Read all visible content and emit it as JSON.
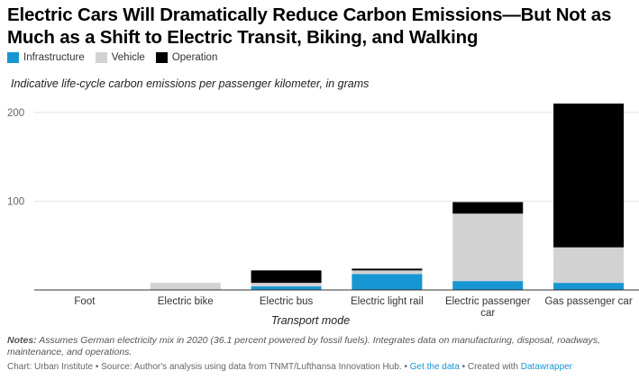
{
  "title": "Electric Cars Will Dramatically Reduce Carbon Emissions—But Not as Much as a Shift to Electric Transit, Biking, and Walking",
  "subtitle": "Indicative life-cycle carbon emissions per passenger kilometer, in grams",
  "notes_label": "Notes:",
  "notes_text": "Assumes German electricity mix in 2020 (36.1 percent powered by fossil fuels). Integrates data on manufacturing, disposal, roadways, maintenance, and operations.",
  "footer": {
    "prefix": "Chart: Urban Institute • Source: Author's analysis using data from TNMT/Lufthansa Innovation Hub. •",
    "get_data": "Get the data",
    "middle": "• Created with",
    "datawrapper": "Datawrapper"
  },
  "colors": {
    "infrastructure": "#1696d2",
    "vehicle": "#d2d2d2",
    "operation": "#000000",
    "grid": "#e3e3e3",
    "axis": "#555555",
    "link": "#1696d2"
  },
  "chart_data": {
    "type": "bar",
    "stacked": true,
    "xlabel": "Transport mode",
    "ylabel": "",
    "ylim": [
      0,
      210
    ],
    "yticks": [
      100,
      200
    ],
    "legend_position": "top-left",
    "grid": true,
    "categories": [
      "Foot",
      "Electric bike",
      "Electric bus",
      "Electric light rail",
      "Electric passenger car",
      "Gas passenger car"
    ],
    "series": [
      {
        "name": "Infrastructure",
        "values": [
          0,
          0,
          4,
          18,
          10,
          8
        ]
      },
      {
        "name": "Vehicle",
        "values": [
          0,
          8,
          4,
          4,
          76,
          40
        ]
      },
      {
        "name": "Operation",
        "values": [
          0,
          0,
          14,
          2,
          13,
          162
        ]
      }
    ]
  }
}
